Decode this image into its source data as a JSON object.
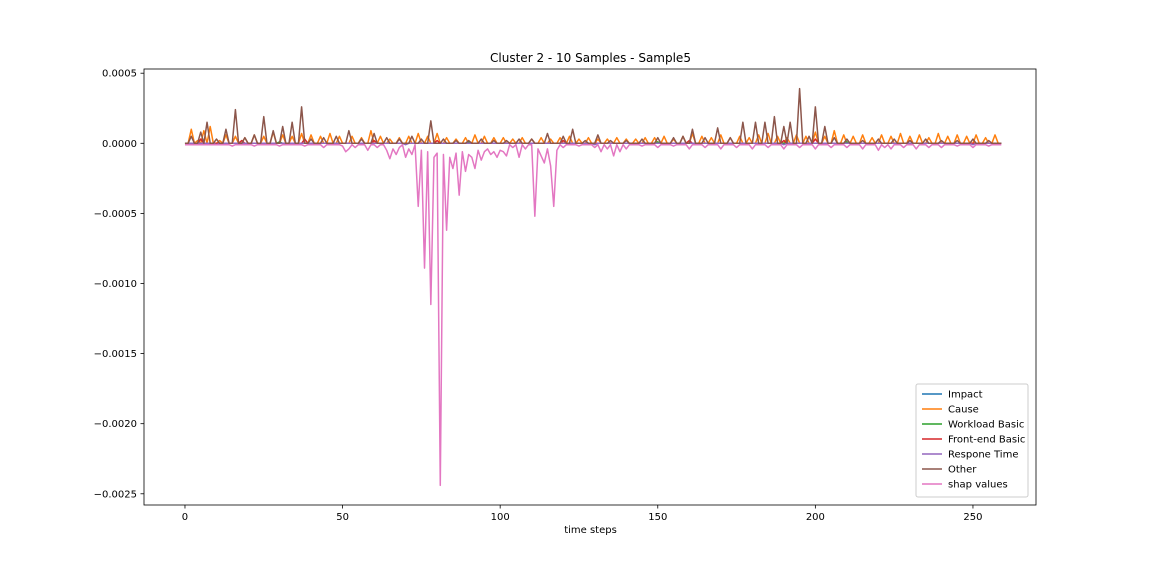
{
  "chart_data": {
    "type": "line",
    "title": "Cluster 2 - 10 Samples - Sample5",
    "xlabel": "time steps",
    "ylabel": "",
    "xlim": [
      -13,
      270
    ],
    "ylim": [
      -0.00258,
      0.00053
    ],
    "x_ticks": [
      0,
      50,
      100,
      150,
      200,
      250
    ],
    "x_tick_labels": [
      "0",
      "50",
      "100",
      "150",
      "200",
      "250"
    ],
    "y_ticks": [
      0.0005,
      0.0,
      -0.0005,
      -0.001,
      -0.0015,
      -0.002,
      -0.0025
    ],
    "y_tick_labels": [
      "0.0005",
      "0.0000",
      "−0.0005",
      "−0.0010",
      "−0.0015",
      "−0.0020",
      "−0.0025"
    ],
    "grid": false,
    "legend_position": "lower-right",
    "n_points": 260,
    "series": [
      {
        "name": "Impact",
        "color": "#1f77b4",
        "base": 0.0,
        "spikes": []
      },
      {
        "name": "Cause",
        "color": "#ff7f0e",
        "base": 0.0,
        "spikes": [
          [
            2,
            0.0001
          ],
          [
            4,
            2e-05
          ],
          [
            6,
            9e-05
          ],
          [
            8,
            0.00012
          ],
          [
            11,
            2e-05
          ],
          [
            13,
            6e-05
          ],
          [
            16,
            5e-05
          ],
          [
            19,
            4e-05
          ],
          [
            22,
            6e-05
          ],
          [
            25,
            5e-05
          ],
          [
            28,
            8e-05
          ],
          [
            31,
            6e-05
          ],
          [
            34,
            5e-05
          ],
          [
            37,
            7e-05
          ],
          [
            40,
            6e-05
          ],
          [
            43,
            5e-05
          ],
          [
            46,
            7e-05
          ],
          [
            49,
            5e-05
          ],
          [
            53,
            5e-05
          ],
          [
            56,
            4e-05
          ],
          [
            59,
            9e-05
          ],
          [
            62,
            5e-05
          ],
          [
            65,
            3e-05
          ],
          [
            68,
            4e-05
          ],
          [
            71,
            5e-05
          ],
          [
            74,
            7e-05
          ],
          [
            77,
            5e-05
          ],
          [
            80,
            7e-05
          ],
          [
            83,
            4e-05
          ],
          [
            86,
            3e-05
          ],
          [
            89,
            4e-05
          ],
          [
            92,
            6e-05
          ],
          [
            95,
            5e-05
          ],
          [
            98,
            4e-05
          ],
          [
            101,
            4e-05
          ],
          [
            104,
            3e-05
          ],
          [
            107,
            4e-05
          ],
          [
            110,
            3e-05
          ],
          [
            113,
            4e-05
          ],
          [
            116,
            3e-05
          ],
          [
            119,
            4e-05
          ],
          [
            122,
            5e-05
          ],
          [
            125,
            3e-05
          ],
          [
            128,
            4e-05
          ],
          [
            131,
            3e-05
          ],
          [
            134,
            3e-05
          ],
          [
            137,
            4e-05
          ],
          [
            140,
            3e-05
          ],
          [
            143,
            3e-05
          ],
          [
            146,
            4e-05
          ],
          [
            149,
            4e-05
          ],
          [
            152,
            5e-05
          ],
          [
            155,
            3e-05
          ],
          [
            158,
            5e-05
          ],
          [
            161,
            7e-05
          ],
          [
            164,
            5e-05
          ],
          [
            167,
            4e-05
          ],
          [
            170,
            6e-05
          ],
          [
            173,
            4e-05
          ],
          [
            176,
            5e-05
          ],
          [
            179,
            4e-05
          ],
          [
            182,
            6e-05
          ],
          [
            185,
            7e-05
          ],
          [
            188,
            5e-05
          ],
          [
            191,
            4e-05
          ],
          [
            194,
            6e-05
          ],
          [
            197,
            5e-05
          ],
          [
            200,
            8e-05
          ],
          [
            203,
            5e-05
          ],
          [
            206,
            9e-05
          ],
          [
            209,
            6e-05
          ],
          [
            212,
            5e-05
          ],
          [
            215,
            6e-05
          ],
          [
            218,
            4e-05
          ],
          [
            221,
            6e-05
          ],
          [
            224,
            5e-05
          ],
          [
            227,
            7e-05
          ],
          [
            230,
            5e-05
          ],
          [
            233,
            6e-05
          ],
          [
            236,
            4e-05
          ],
          [
            239,
            7e-05
          ],
          [
            242,
            5e-05
          ],
          [
            245,
            6e-05
          ],
          [
            248,
            5e-05
          ],
          [
            251,
            6e-05
          ],
          [
            254,
            4e-05
          ],
          [
            257,
            6e-05
          ]
        ]
      },
      {
        "name": "Workload Basic",
        "color": "#2ca02c",
        "base": 0.0,
        "spikes": [
          [
            30,
            1e-05
          ],
          [
            90,
            1e-05
          ],
          [
            150,
            1e-05
          ],
          [
            210,
            1e-05
          ]
        ]
      },
      {
        "name": "Front-end Basic",
        "color": "#d62728",
        "base": 0.0,
        "spikes": [
          [
            5,
            3e-05
          ],
          [
            18,
            2e-05
          ],
          [
            38,
            3e-05
          ],
          [
            60,
            2e-05
          ],
          [
            80,
            2e-05
          ],
          [
            120,
            2e-05
          ],
          [
            160,
            2e-05
          ],
          [
            190,
            2e-05
          ],
          [
            200,
            3e-05
          ],
          [
            230,
            2e-05
          ]
        ]
      },
      {
        "name": "Respone Time",
        "color": "#9467bd",
        "base": 0.0,
        "spikes": [
          [
            10,
            -1e-05
          ],
          [
            70,
            -1e-05
          ],
          [
            130,
            -1e-05
          ],
          [
            190,
            -1e-05
          ],
          [
            250,
            -1e-05
          ]
        ]
      },
      {
        "name": "Other",
        "color": "#8c564b",
        "base": 0.0,
        "spikes": [
          [
            2,
            5e-05
          ],
          [
            5,
            8e-05
          ],
          [
            7,
            0.00015
          ],
          [
            10,
            3e-05
          ],
          [
            13,
            0.0001
          ],
          [
            16,
            0.00024
          ],
          [
            19,
            4e-05
          ],
          [
            22,
            6e-05
          ],
          [
            25,
            0.00019
          ],
          [
            28,
            9e-05
          ],
          [
            31,
            0.00012
          ],
          [
            34,
            0.00015
          ],
          [
            37,
            0.00026
          ],
          [
            40,
            3e-05
          ],
          [
            44,
            4e-05
          ],
          [
            48,
            5e-05
          ],
          [
            52,
            9e-05
          ],
          [
            56,
            3e-05
          ],
          [
            60,
            7e-05
          ],
          [
            64,
            4e-05
          ],
          [
            68,
            3e-05
          ],
          [
            72,
            5e-05
          ],
          [
            75,
            3e-05
          ],
          [
            78,
            0.00016
          ],
          [
            82,
            3e-05
          ],
          [
            86,
            2e-05
          ],
          [
            90,
            2e-05
          ],
          [
            94,
            3e-05
          ],
          [
            98,
            2e-05
          ],
          [
            102,
            2e-05
          ],
          [
            106,
            3e-05
          ],
          [
            110,
            3e-05
          ],
          [
            115,
            7e-05
          ],
          [
            120,
            5e-05
          ],
          [
            123,
            0.0001
          ],
          [
            127,
            2e-05
          ],
          [
            131,
            6e-05
          ],
          [
            135,
            2e-05
          ],
          [
            140,
            2e-05
          ],
          [
            145,
            3e-05
          ],
          [
            150,
            4e-05
          ],
          [
            155,
            4e-05
          ],
          [
            158,
            5e-05
          ],
          [
            161,
            0.0001
          ],
          [
            165,
            4e-05
          ],
          [
            169,
            0.00011
          ],
          [
            173,
            4e-05
          ],
          [
            177,
            0.00015
          ],
          [
            181,
            0.00015
          ],
          [
            184,
            0.00015
          ],
          [
            187,
            0.00019
          ],
          [
            190,
            0.00012
          ],
          [
            192,
            0.00015
          ],
          [
            195,
            0.00039
          ],
          [
            198,
            5e-05
          ],
          [
            200,
            0.00026
          ],
          [
            203,
            0.00012
          ],
          [
            206,
            4e-05
          ],
          [
            210,
            3e-05
          ],
          [
            215,
            2e-05
          ],
          [
            220,
            3e-05
          ],
          [
            225,
            3e-05
          ],
          [
            230,
            2e-05
          ],
          [
            235,
            3e-05
          ],
          [
            240,
            2e-05
          ],
          [
            245,
            2e-05
          ],
          [
            250,
            3e-05
          ],
          [
            255,
            2e-05
          ]
        ]
      },
      {
        "name": "shap values",
        "color": "#e377c2",
        "base": -1e-05,
        "spikes": [
          [
            15,
            -2e-05
          ],
          [
            22,
            -2e-05
          ],
          [
            30,
            -2e-05
          ],
          [
            38,
            -2e-05
          ],
          [
            44,
            -3e-05
          ],
          [
            50,
            -2e-05
          ],
          [
            51,
            -6e-05
          ],
          [
            52,
            -4e-05
          ],
          [
            54,
            -3e-05
          ],
          [
            58,
            -5e-05
          ],
          [
            61,
            -3e-05
          ],
          [
            64,
            -5e-05
          ],
          [
            65,
            -0.00011
          ],
          [
            66,
            -4e-05
          ],
          [
            67,
            -8e-05
          ],
          [
            68,
            -3e-05
          ],
          [
            70,
            -0.0001
          ],
          [
            71,
            -4e-05
          ],
          [
            72,
            -8e-05
          ],
          [
            74,
            -0.00045
          ],
          [
            75,
            -5e-05
          ],
          [
            76,
            -0.00089
          ],
          [
            77,
            -6e-05
          ],
          [
            78,
            -0.00115
          ],
          [
            79,
            -0.0001
          ],
          [
            80,
            -7e-05
          ],
          [
            81,
            -0.00244
          ],
          [
            82,
            -8e-05
          ],
          [
            83,
            -0.00062
          ],
          [
            84,
            -0.0001
          ],
          [
            85,
            -0.00018
          ],
          [
            86,
            -7e-05
          ],
          [
            87,
            -0.00037
          ],
          [
            88,
            -6e-05
          ],
          [
            89,
            -0.0002
          ],
          [
            90,
            -8e-05
          ],
          [
            91,
            -0.0001
          ],
          [
            92,
            -0.00018
          ],
          [
            93,
            -5e-05
          ],
          [
            94,
            -0.00012
          ],
          [
            95,
            -6e-05
          ],
          [
            96,
            -4e-05
          ],
          [
            97,
            -8e-05
          ],
          [
            98,
            -6e-05
          ],
          [
            99,
            -0.0001
          ],
          [
            100,
            -5e-05
          ],
          [
            101,
            -6e-05
          ],
          [
            102,
            -9e-05
          ],
          [
            104,
            -3e-05
          ],
          [
            106,
            -0.0001
          ],
          [
            108,
            -4e-05
          ],
          [
            111,
            -0.00052
          ],
          [
            112,
            -4e-05
          ],
          [
            113,
            -9e-05
          ],
          [
            114,
            -0.00014
          ],
          [
            115,
            -4e-05
          ],
          [
            116,
            -0.00016
          ],
          [
            117,
            -0.00045
          ],
          [
            118,
            -5e-05
          ],
          [
            120,
            -3e-05
          ],
          [
            125,
            -2e-05
          ],
          [
            130,
            -3e-05
          ],
          [
            132,
            -6e-05
          ],
          [
            134,
            -4e-05
          ],
          [
            136,
            -9e-05
          ],
          [
            138,
            -6e-05
          ],
          [
            140,
            -4e-05
          ],
          [
            145,
            -2e-05
          ],
          [
            150,
            -3e-05
          ],
          [
            155,
            -2e-05
          ],
          [
            160,
            -4e-05
          ],
          [
            165,
            -3e-05
          ],
          [
            170,
            -4e-05
          ],
          [
            175,
            -3e-05
          ],
          [
            180,
            -4e-05
          ],
          [
            185,
            -3e-05
          ],
          [
            190,
            -4e-05
          ],
          [
            195,
            -3e-05
          ],
          [
            200,
            -4e-05
          ],
          [
            205,
            -3e-05
          ],
          [
            210,
            -3e-05
          ],
          [
            215,
            -4e-05
          ],
          [
            220,
            -5e-05
          ],
          [
            222,
            -3e-05
          ],
          [
            224,
            -4e-05
          ],
          [
            228,
            -3e-05
          ],
          [
            232,
            -4e-05
          ],
          [
            236,
            -3e-05
          ],
          [
            240,
            -3e-05
          ],
          [
            245,
            -2e-05
          ],
          [
            250,
            -3e-05
          ],
          [
            255,
            -2e-05
          ]
        ]
      }
    ]
  }
}
